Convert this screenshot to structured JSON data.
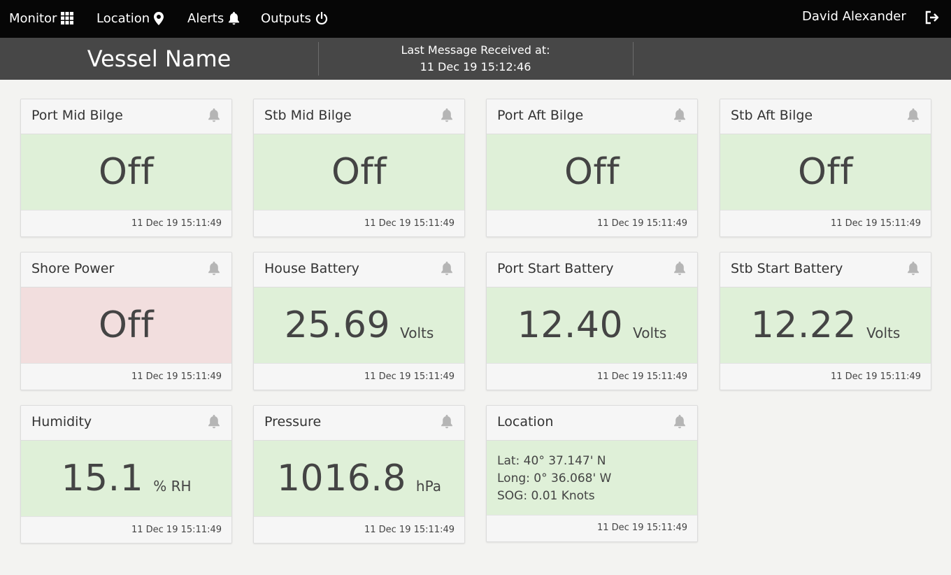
{
  "nav": {
    "items": [
      {
        "label": "Monitor",
        "icon": "grid-icon"
      },
      {
        "label": "Location",
        "icon": "map-pin-icon"
      },
      {
        "label": "Alerts",
        "icon": "bell-icon"
      },
      {
        "label": "Outputs",
        "icon": "power-icon"
      }
    ],
    "user": "David Alexander",
    "logout_icon": "logout-icon"
  },
  "header": {
    "vessel_name": "Vessel Name",
    "last_message_label": "Last Message Received at:",
    "last_message_time": "11 Dec 19 15:12:46"
  },
  "colors": {
    "ok": "#dff0d8",
    "alert": "#f2dede",
    "nav_bg": "#060606",
    "header_bg": "#474747"
  },
  "cards": [
    {
      "title": "Port Mid Bilge",
      "value": "Off",
      "unit": "",
      "status": "ok",
      "time": "11 Dec 19 15:11:49"
    },
    {
      "title": "Stb Mid Bilge",
      "value": "Off",
      "unit": "",
      "status": "ok",
      "time": "11 Dec 19 15:11:49"
    },
    {
      "title": "Port Aft Bilge",
      "value": "Off",
      "unit": "",
      "status": "ok",
      "time": "11 Dec 19 15:11:49"
    },
    {
      "title": "Stb Aft Bilge",
      "value": "Off",
      "unit": "",
      "status": "ok",
      "time": "11 Dec 19 15:11:49"
    },
    {
      "title": "Shore Power",
      "value": "Off",
      "unit": "",
      "status": "alert",
      "time": "11 Dec 19 15:11:49"
    },
    {
      "title": "House Battery",
      "value": "25.69",
      "unit": "Volts",
      "status": "ok",
      "time": "11 Dec 19 15:11:49"
    },
    {
      "title": "Port Start Battery",
      "value": "12.40",
      "unit": "Volts",
      "status": "ok",
      "time": "11 Dec 19 15:11:49"
    },
    {
      "title": "Stb Start Battery",
      "value": "12.22",
      "unit": "Volts",
      "status": "ok",
      "time": "11 Dec 19 15:11:49"
    },
    {
      "title": "Humidity",
      "value": "15.1",
      "unit": "% RH",
      "status": "ok",
      "time": "11 Dec 19 15:11:49"
    },
    {
      "title": "Pressure",
      "value": "1016.8",
      "unit": "hPa",
      "status": "ok",
      "time": "11 Dec 19 15:11:49"
    }
  ],
  "location_card": {
    "title": "Location",
    "lat": "Lat: 40° 37.147' N",
    "long": "Long: 0° 36.068' W",
    "sog": "SOG: 0.01 Knots",
    "time": "11 Dec 19 15:11:49"
  }
}
